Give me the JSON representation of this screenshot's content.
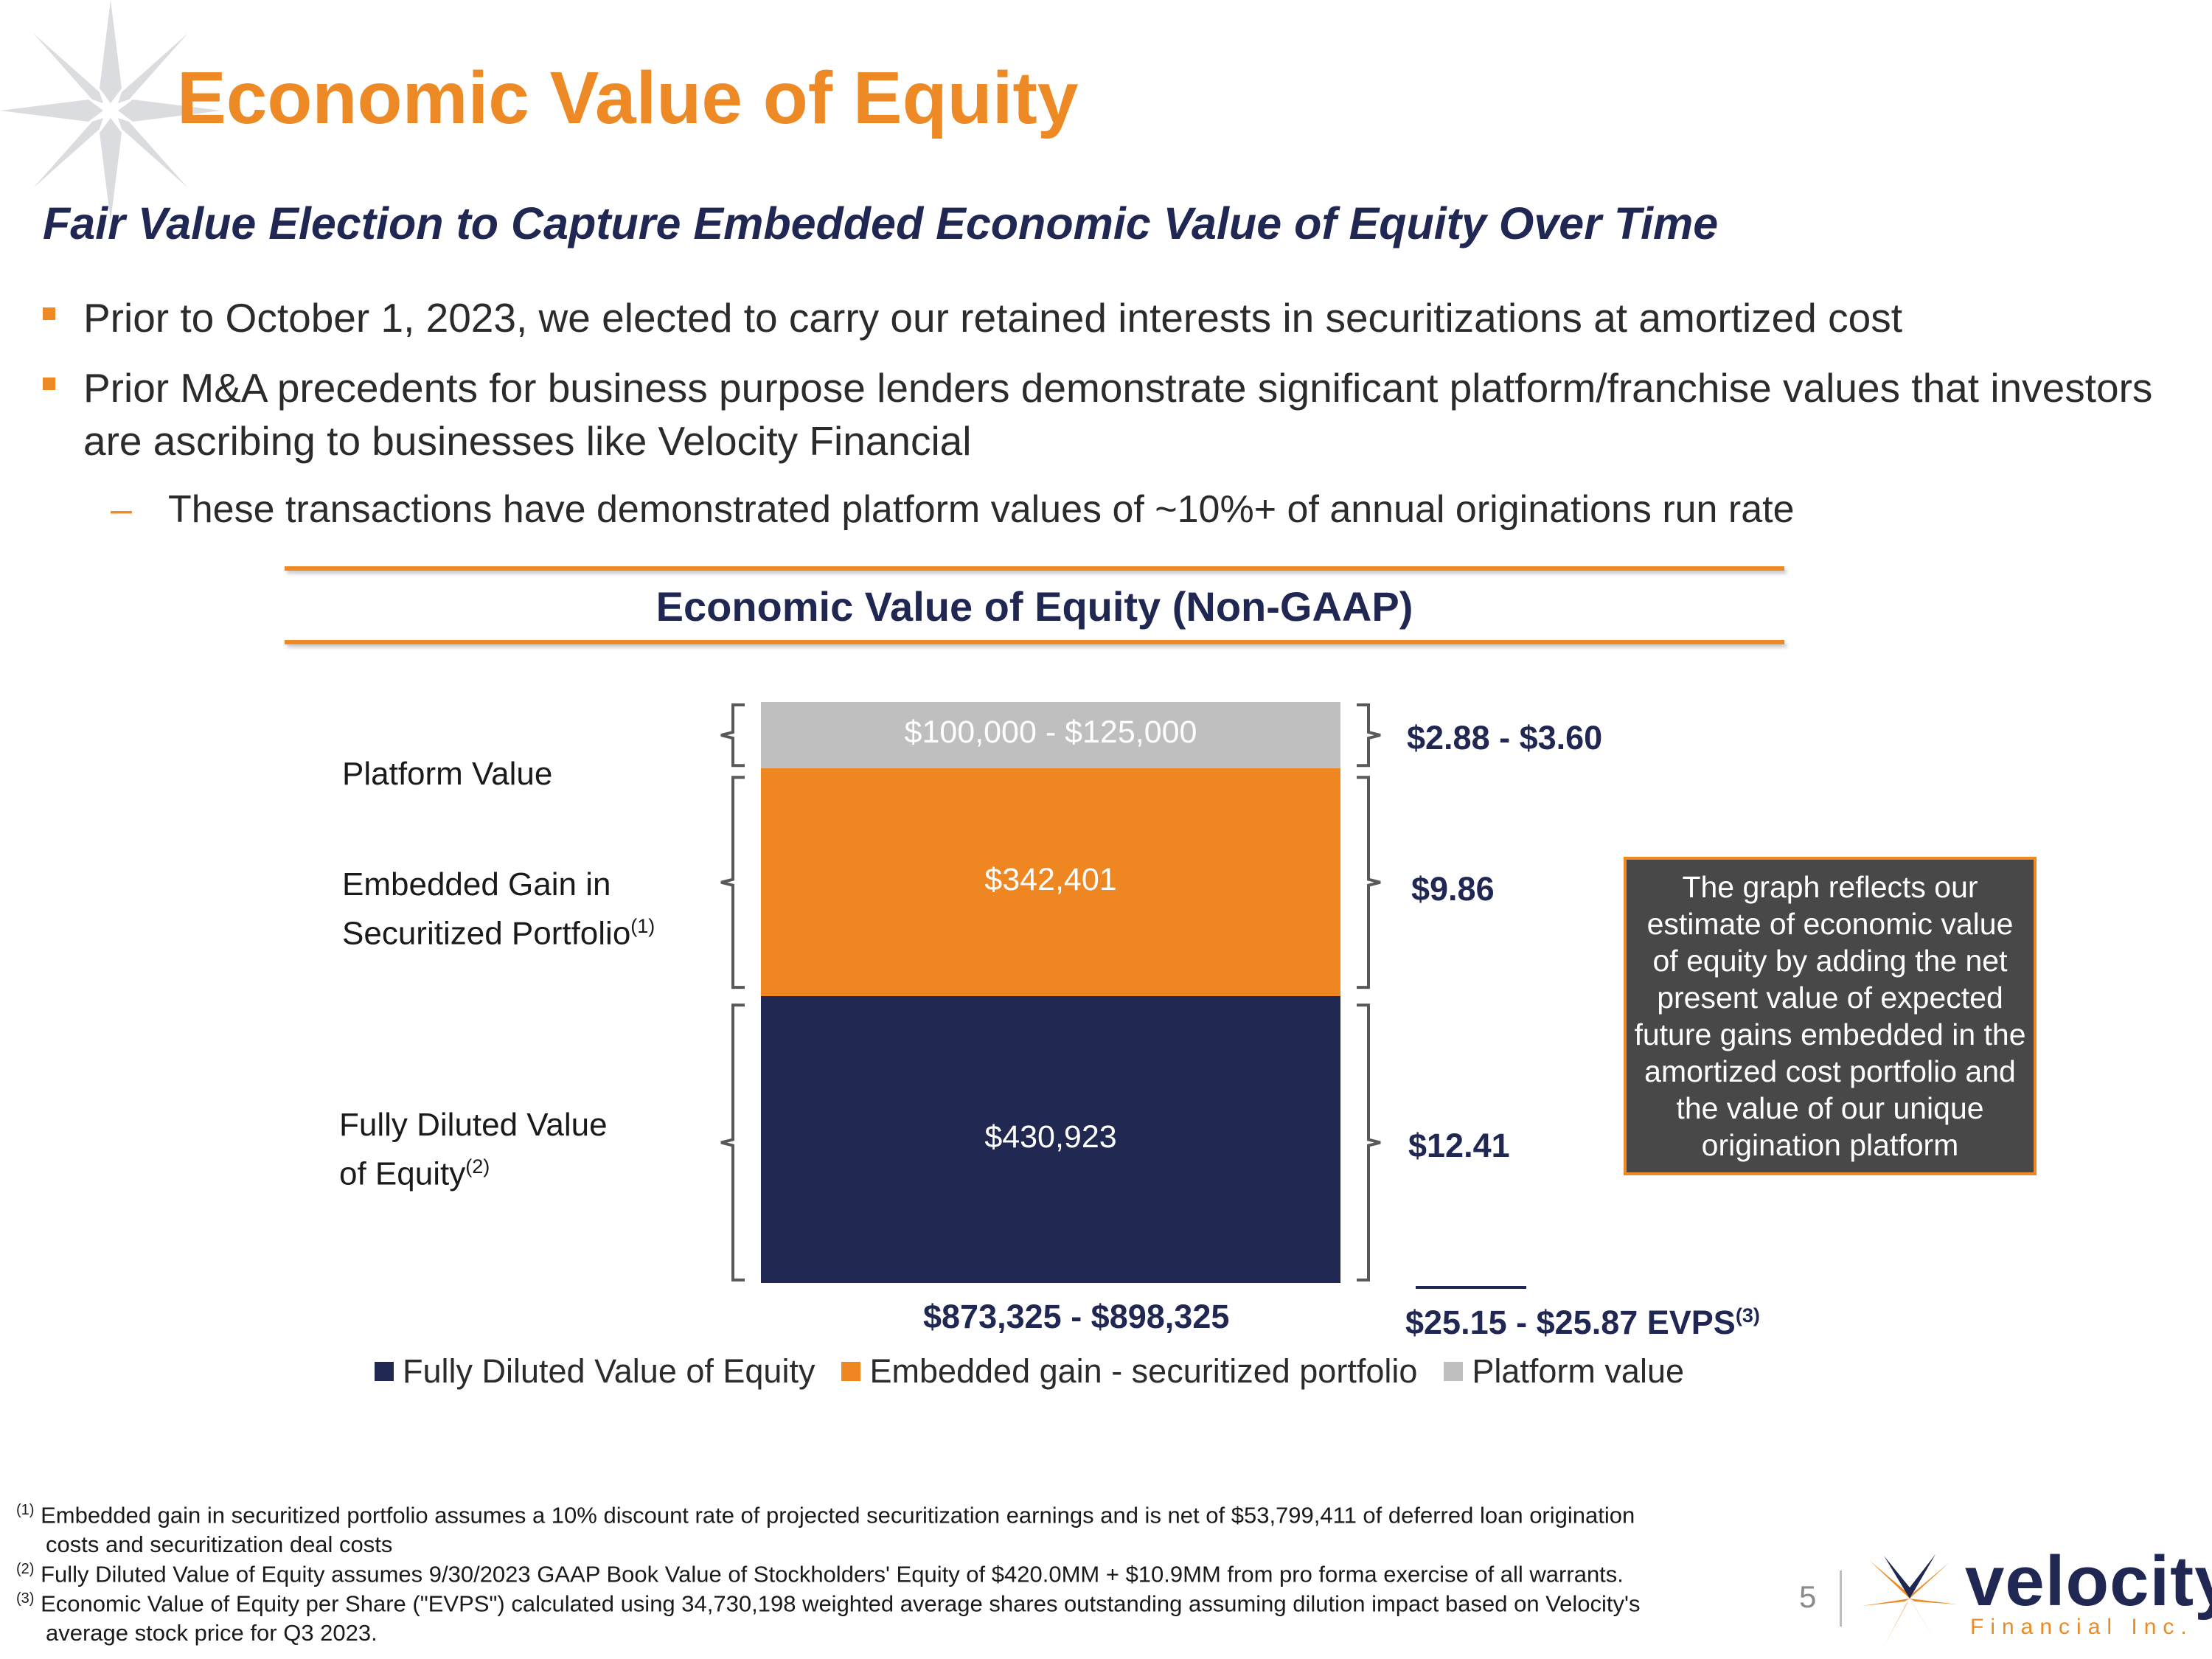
{
  "header": {
    "title": "Economic Value of Equity",
    "subtitle": "Fair Value Election to Capture Embedded Economic Value of Equity Over Time"
  },
  "bullets": [
    "Prior to October 1, 2023, we elected to carry our retained interests in securitizations at amortized cost",
    "Prior M&A precedents for business purpose lenders demonstrate significant platform/franchise values that investors are ascribing to businesses like Velocity Financial"
  ],
  "sub_bullet": "These transactions have demonstrated platform values of ~10%+ of annual originations run rate",
  "chart_data": {
    "type": "bar",
    "stacked": true,
    "title": "Economic Value of Equity (Non-GAAP)",
    "units": "$ thousands",
    "series": [
      {
        "name": "Fully Diluted Value of Equity",
        "value": 430923,
        "label": "$430,923",
        "color": "#212852",
        "per_share": "$12.41"
      },
      {
        "name": "Embedded gain - securitized portfolio",
        "value": 342401,
        "label": "$342,401",
        "color": "#ee8621",
        "per_share": "$9.86"
      },
      {
        "name": "Platform value",
        "value": 100000,
        "value_high": 125000,
        "label": "$100,000 - $125,000",
        "color": "#bfbfbf",
        "per_share": "$2.88 - $3.60"
      }
    ],
    "category_labels": {
      "platform": "Platform Value",
      "embedded_line1": "Embedded Gain in",
      "embedded_line2": "Securitized Portfolio",
      "embedded_sup": "(1)",
      "equity_line1": "Fully Diluted Value",
      "equity_line2": "of Equity",
      "equity_sup": "(2)"
    },
    "total_label": "$873,325 - $898,325",
    "total_per_share": "$25.15 - $25.87 EVPS",
    "total_per_share_sup": "(3)",
    "legend_position": "bottom"
  },
  "note_box": "The graph reflects our estimate of economic value of equity by adding the net present value of expected future gains embedded in the amortized cost portfolio and the value of our unique origination platform",
  "footnotes": {
    "f1_mark": "(1)",
    "f1_line1": "Embedded gain in securitized portfolio assumes a 10% discount rate of projected securitization earnings and is net of $53,799,411 of deferred loan origination",
    "f1_line2": "costs and securitization deal costs",
    "f2_mark": "(2)",
    "f2_line1": "Fully Diluted Value of Equity assumes 9/30/2023 GAAP Book Value of Stockholders' Equity of $420.0MM + $10.9MM from pro forma exercise of all warrants.",
    "f3_mark": "(3)",
    "f3_line1": "Economic Value of Equity per Share (\"EVPS\") calculated using 34,730,198 weighted average shares outstanding assuming dilution impact based on Velocity's",
    "f3_line2": "average stock price for Q3 2023."
  },
  "footer": {
    "page_number": "5",
    "logo_name": "velocity",
    "logo_tagline": "Financial Inc."
  },
  "colors": {
    "accent": "#ee8a25",
    "navy": "#1f2752",
    "gray": "#bfbfbf"
  }
}
